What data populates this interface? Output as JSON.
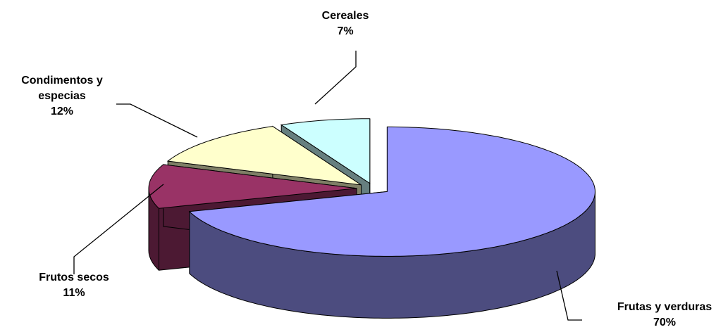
{
  "chart_data": {
    "type": "pie",
    "categories": [
      "Frutas y verduras",
      "Frutos secos",
      "Condimentos y especias",
      "Cereales"
    ],
    "values": [
      70,
      11,
      12,
      7
    ],
    "value_labels": [
      "70%",
      "11%",
      "12%",
      "7%"
    ],
    "colors": [
      "#9999ff",
      "#993366",
      "#ffffcc",
      "#ccffff"
    ]
  }
}
